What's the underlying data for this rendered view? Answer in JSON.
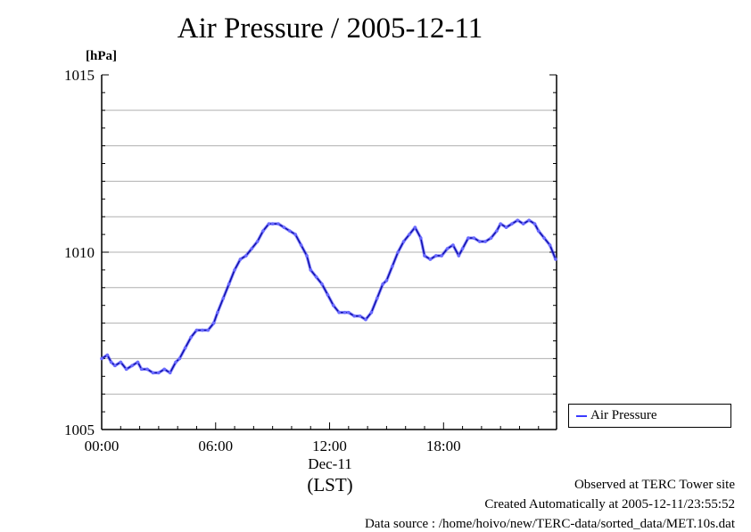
{
  "chart_data": {
    "type": "line",
    "title": "Air Pressure / 2005-12-11",
    "ylabel": "[hPa]",
    "ylim": [
      1005,
      1015
    ],
    "yticks": [
      "1005",
      "1010",
      "1015"
    ],
    "xlim": [
      0,
      23.95
    ],
    "xticks": [
      {
        "value": 0,
        "label": "00:00"
      },
      {
        "value": 6,
        "label": "06:00"
      },
      {
        "value": 12,
        "label": "12:00"
      },
      {
        "value": 18,
        "label": "18:00"
      }
    ],
    "x_date_label": "Dec-11",
    "x_zone_label": "(LST)",
    "grid": true,
    "legend_position": "right",
    "series": [
      {
        "name": "Air Pressure",
        "color": "#3a3aff",
        "x": [
          0,
          0.3,
          0.5,
          0.7,
          1.0,
          1.3,
          1.6,
          1.9,
          2.1,
          2.4,
          2.7,
          3.0,
          3.3,
          3.6,
          3.9,
          4.1,
          4.4,
          4.7,
          5.0,
          5.3,
          5.6,
          5.9,
          6.1,
          6.4,
          6.7,
          7.0,
          7.3,
          7.6,
          7.9,
          8.2,
          8.5,
          8.8,
          9.0,
          9.3,
          9.6,
          9.9,
          10.2,
          10.5,
          10.8,
          11.0,
          11.3,
          11.6,
          11.9,
          12.2,
          12.5,
          12.8,
          13.0,
          13.3,
          13.6,
          13.9,
          14.2,
          14.5,
          14.8,
          15.0,
          15.3,
          15.6,
          15.9,
          16.2,
          16.5,
          16.8,
          17.0,
          17.3,
          17.6,
          17.9,
          18.2,
          18.5,
          18.8,
          19.0,
          19.3,
          19.6,
          19.9,
          20.2,
          20.5,
          20.8,
          21.0,
          21.3,
          21.6,
          21.9,
          22.2,
          22.5,
          22.8,
          23.0,
          23.3,
          23.6,
          23.9
        ],
        "values": [
          1007.0,
          1007.1,
          1006.9,
          1006.8,
          1006.9,
          1006.7,
          1006.8,
          1006.9,
          1006.7,
          1006.7,
          1006.6,
          1006.6,
          1006.7,
          1006.6,
          1006.9,
          1007.0,
          1007.3,
          1007.6,
          1007.8,
          1007.8,
          1007.8,
          1008.0,
          1008.3,
          1008.7,
          1009.1,
          1009.5,
          1009.8,
          1009.9,
          1010.1,
          1010.3,
          1010.6,
          1010.8,
          1010.8,
          1010.8,
          1010.7,
          1010.6,
          1010.5,
          1010.2,
          1009.9,
          1009.5,
          1009.3,
          1009.1,
          1008.8,
          1008.5,
          1008.3,
          1008.3,
          1008.3,
          1008.2,
          1008.2,
          1008.1,
          1008.3,
          1008.7,
          1009.1,
          1009.2,
          1009.6,
          1010.0,
          1010.3,
          1010.5,
          1010.7,
          1010.4,
          1009.9,
          1009.8,
          1009.9,
          1009.9,
          1010.1,
          1010.2,
          1009.9,
          1010.1,
          1010.4,
          1010.4,
          1010.3,
          1010.3,
          1010.4,
          1010.6,
          1010.8,
          1010.7,
          1010.8,
          1010.9,
          1010.8,
          1010.9,
          1010.8,
          1010.6,
          1010.4,
          1010.2,
          1009.8
        ]
      }
    ]
  },
  "footer": {
    "line1": "Observed at TERC Tower site",
    "line2": "Created Automatically at 2005-12-11/23:55:52",
    "line3": "Data source : /home/hoivo/new/TERC-data/sorted_data/MET.10s.dat"
  }
}
